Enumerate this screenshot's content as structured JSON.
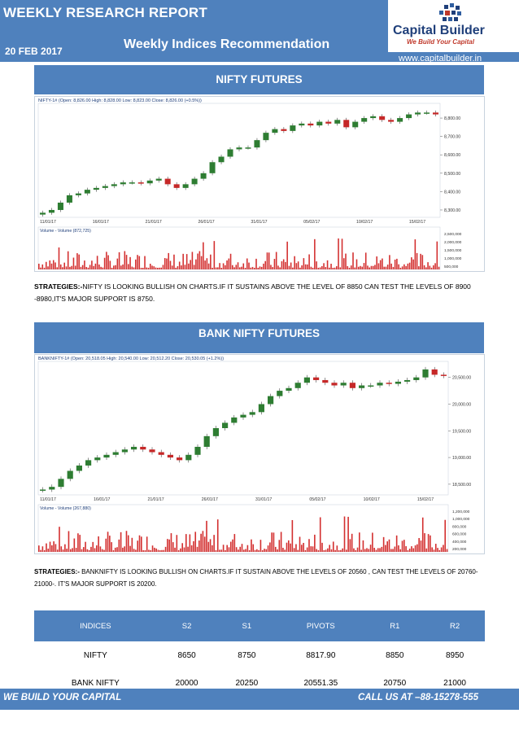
{
  "header": {
    "title": "WEEKLY RESEARCH REPORT",
    "date": "20 FEB 2017",
    "subtitle": "Weekly Indices Recommendation",
    "website": "www.capitalbuilder.in",
    "logo_name": "Capital Builder",
    "logo_tagline": "We Build Your Capital"
  },
  "nifty": {
    "section_title": "NIFTY FUTURES",
    "legend": "NIFTY-1# (Open: 8,826.00  High: 8,828.00  Low: 8,823.00  Close: 8,826.00 (+0.5%))",
    "volume_legend": "Volume - Volume (872,725)",
    "strategy_label": "STRATEGIES:-",
    "strategy_text": "NIFTY IS LOOKING BULLISH ON CHARTS.IF IT SUSTAINS ABOVE THE LEVEL OF 8850 CAN TEST THE LEVELS OF 8900 -8980,IT'S MAJOR SUPPORT IS 8750.",
    "chart_data": {
      "type": "line",
      "x_ticks": [
        "11/01/17",
        "16/01/17",
        "21/01/17",
        "26/01/17",
        "31/01/17",
        "05/02/17",
        "10/02/17",
        "15/02/17"
      ],
      "y_ticks": [
        "8,800.00",
        "8,700.00",
        "8,600.00",
        "8,500.00",
        "8,400.00",
        "8,300.00"
      ],
      "ylim": [
        8260,
        8880
      ],
      "volume_ticks": [
        "2,500,000",
        "2,000,000",
        "1,500,000",
        "1,000,000",
        "500,000"
      ],
      "series": [
        {
          "values": [
            8285,
            8300,
            8340,
            8380,
            8390,
            8410,
            8420,
            8430,
            8440,
            8450,
            8450,
            8445,
            8460,
            8470,
            8440,
            8420,
            8440,
            8470,
            8500,
            8560,
            8590,
            8630,
            8640,
            8640,
            8680,
            8720,
            8740,
            8730,
            8760,
            8770,
            8760,
            8780,
            8770,
            8790,
            8750,
            8780,
            8800,
            8810,
            8790,
            8780,
            8800,
            8820,
            8830,
            8830,
            8820
          ]
        }
      ]
    }
  },
  "banknifty": {
    "section_title": "BANK NIFTY FUTURES",
    "legend": "BANKNIFTY-1# (Open: 20,518.05  High: 20,540.00  Low: 20,512.20  Close: 20,530.05 (+1.2%))",
    "volume_legend": "Volume - Volume (267,880)",
    "strategy_label": "STRATEGIES:-",
    "strategy_text": "BANKNIFTY IS LOOKING BULLISH ON CHARTS.IF IT SUSTAIN ABOVE THE LEVELS OF 20560 , CAN TEST THE LEVELS OF 20760-21000-. IT'S MAJOR SUPPORT IS 20200.",
    "chart_data": {
      "type": "line",
      "x_ticks": [
        "11/01/17",
        "16/01/17",
        "21/01/17",
        "26/01/17",
        "31/01/17",
        "05/02/17",
        "10/02/17",
        "15/02/17"
      ],
      "y_ticks": [
        "20,500.00",
        "20,000.00",
        "19,500.00",
        "19,000.00",
        "18,500.00"
      ],
      "ylim": [
        18300,
        20800
      ],
      "volume_ticks": [
        "1,200,000",
        "1,000,000",
        "800,000",
        "600,000",
        "400,000",
        "200,000"
      ],
      "series": [
        {
          "values": [
            18400,
            18450,
            18600,
            18750,
            18850,
            18950,
            19000,
            19050,
            19100,
            19150,
            19200,
            19150,
            19100,
            19050,
            19000,
            18950,
            19050,
            19200,
            19400,
            19550,
            19650,
            19750,
            19800,
            19850,
            20000,
            20150,
            20250,
            20300,
            20400,
            20500,
            20450,
            20400,
            20350,
            20400,
            20300,
            20350,
            20350,
            20400,
            20380,
            20420,
            20450,
            20500,
            20650,
            20550,
            20530
          ]
        }
      ]
    }
  },
  "levels_table": {
    "headers": [
      "INDICES",
      "S2",
      "S1",
      "PIVOTS",
      "R1",
      "R2"
    ],
    "rows": [
      [
        "NIFTY",
        "8650",
        "8750",
        "8817.90",
        "8850",
        "8950"
      ],
      [
        "BANK NIFTY",
        "20000",
        "20250",
        "20551.35",
        "20750",
        "21000"
      ]
    ]
  },
  "footer": {
    "left": "WE BUILD YOUR CAPITAL",
    "right": "CALL US AT –88-15278-555"
  },
  "colors": {
    "band": "#4f81bd",
    "up_candle": "#2e7d32",
    "down_candle": "#c62828",
    "volume": "#d32f2f"
  }
}
